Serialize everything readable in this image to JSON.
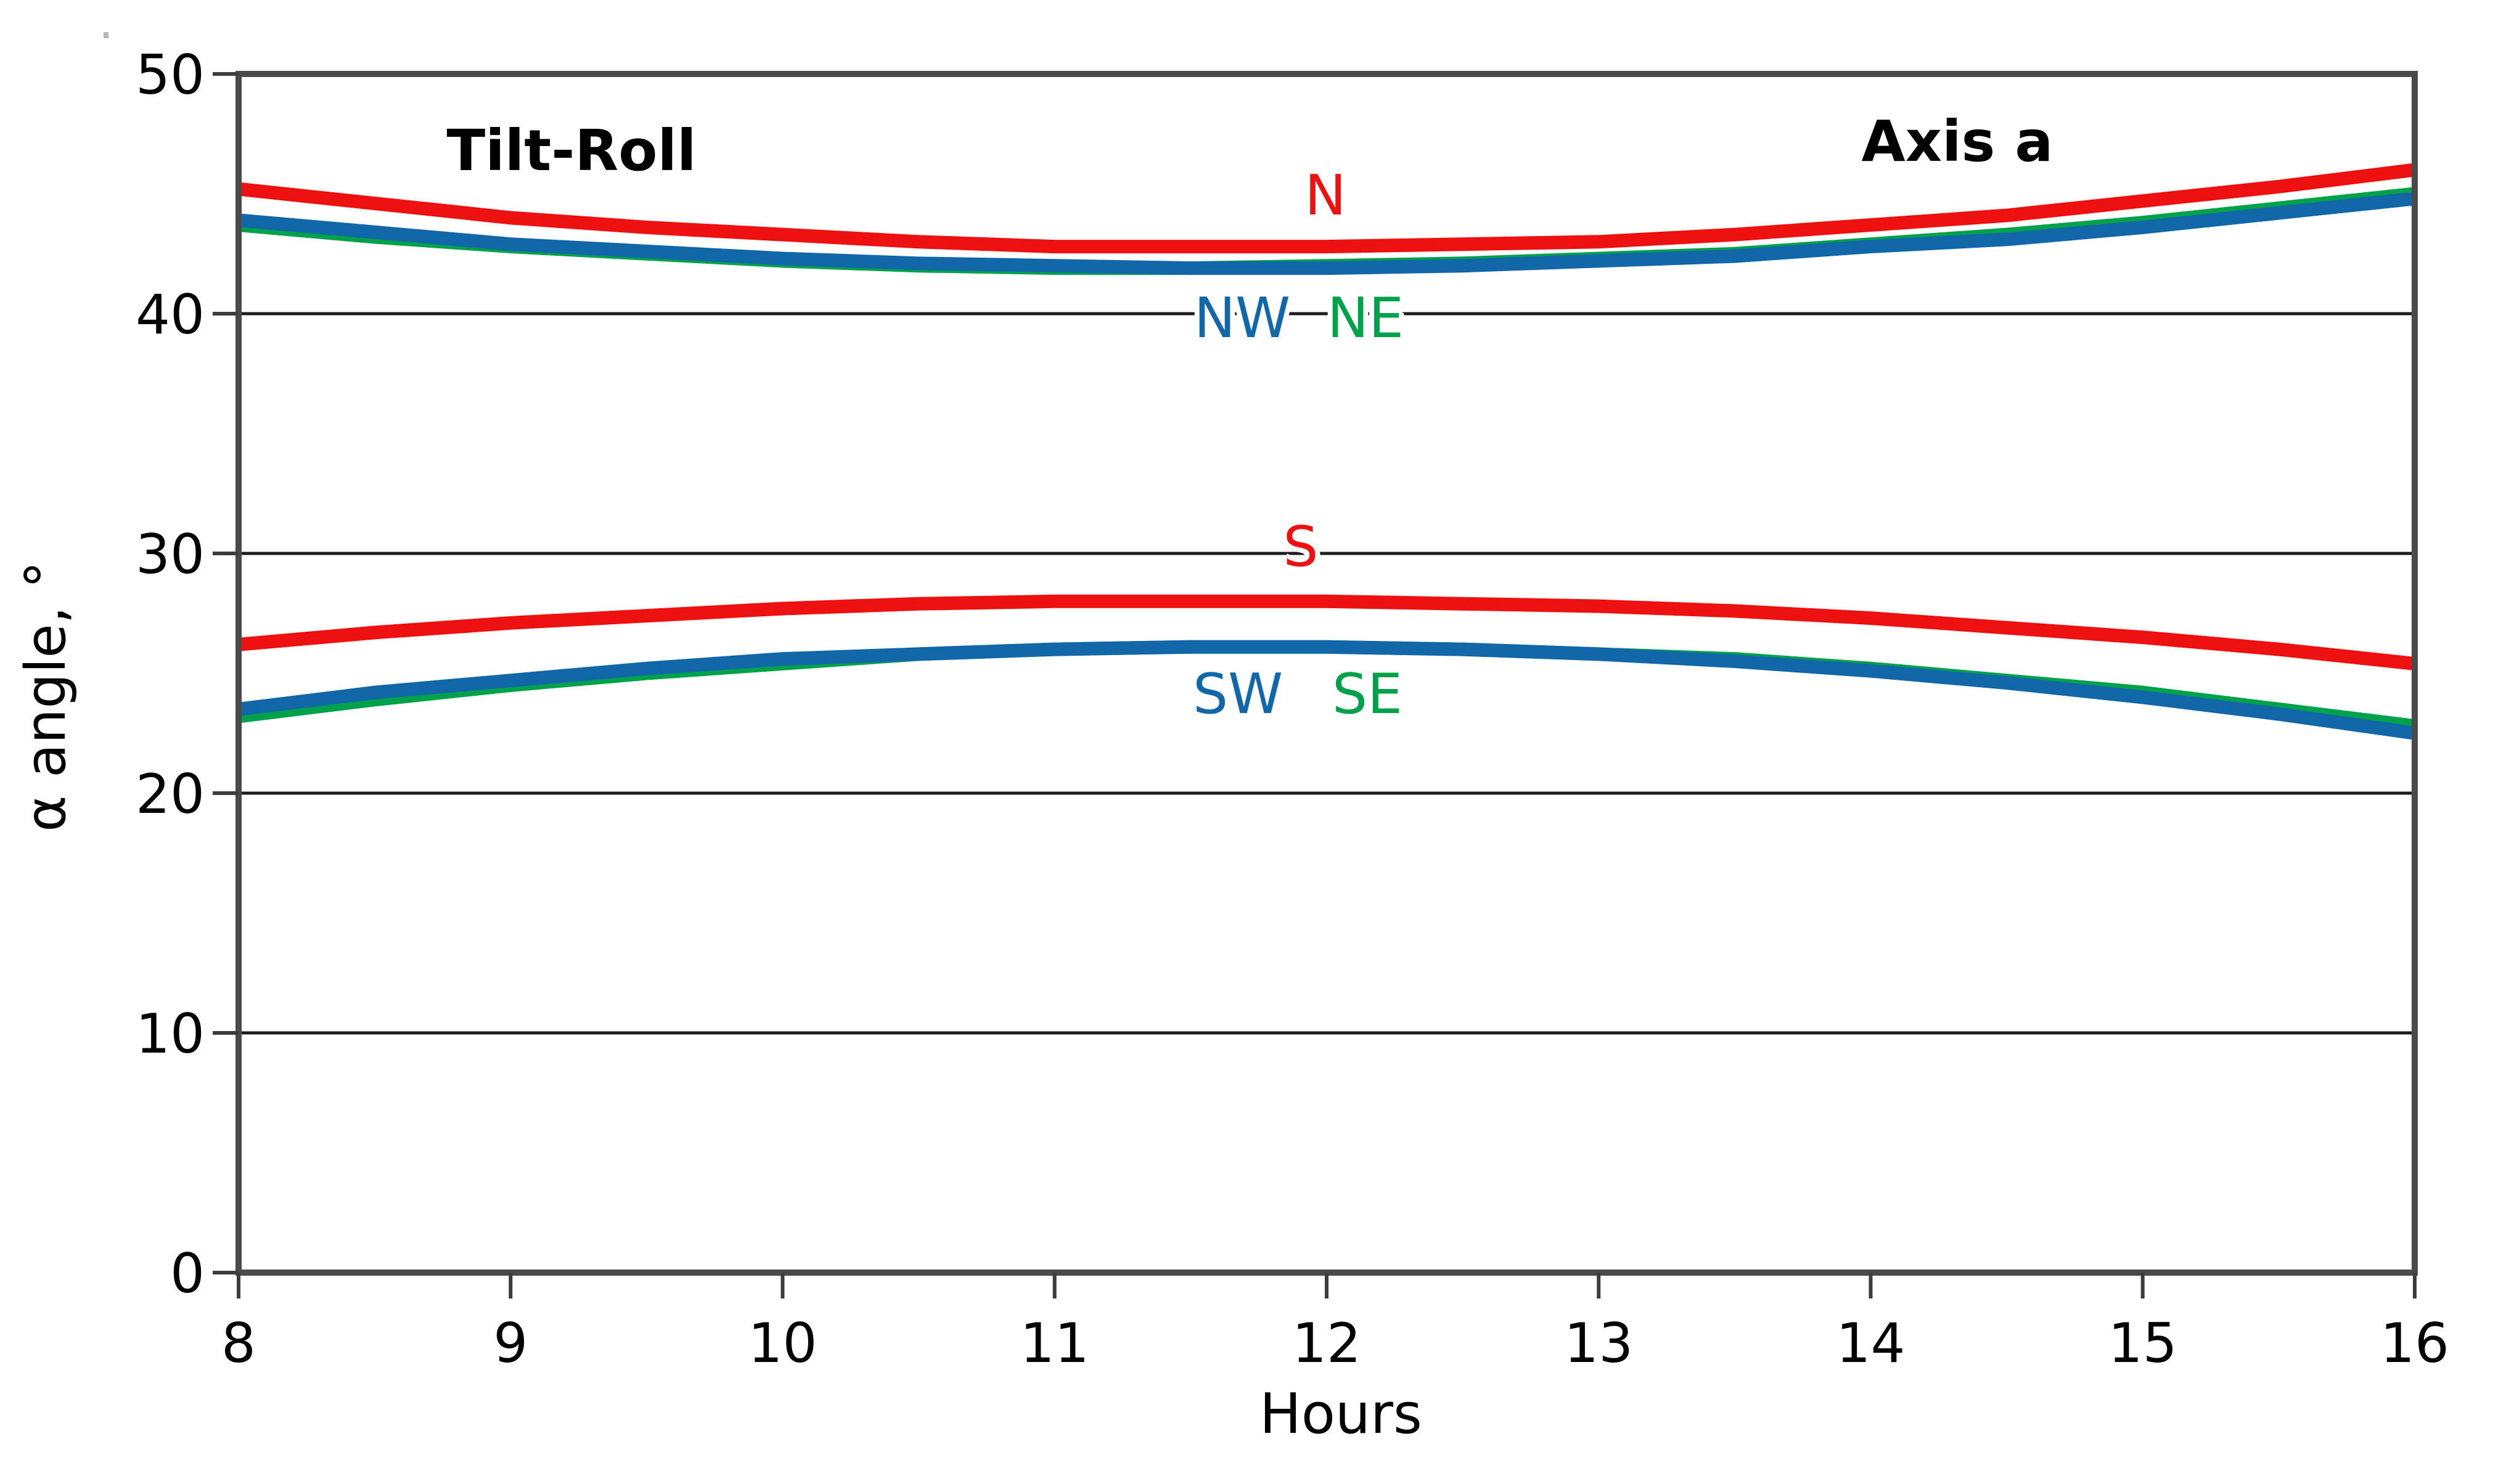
{
  "figure": {
    "title_left": "Tilt-Roll",
    "title_right": "Axis a",
    "xlabel": "Hours",
    "ylabel": "α angle, °"
  },
  "colors": {
    "red_curve": "#ee1111",
    "blue_curve": "#1167a8",
    "green_curve": "#00a14b",
    "frame": "#4a4a4a",
    "gridline": "#1c1c1c",
    "tick": "#3c3c3c",
    "text": "#000000"
  },
  "chart_data": {
    "type": "line",
    "title": "Tilt-Roll / Axis a",
    "xlabel": "Hours",
    "ylabel": "α angle, °",
    "xlim": [
      8,
      16
    ],
    "ylim": [
      0,
      50
    ],
    "x_ticks": [
      8,
      9,
      10,
      11,
      12,
      13,
      14,
      15,
      16
    ],
    "y_ticks": [
      0,
      10,
      20,
      30,
      40,
      50
    ],
    "grid": true,
    "legend": "inline curve labels",
    "x": [
      8,
      8.5,
      9,
      9.5,
      10,
      10.5,
      11,
      11.5,
      12,
      12.5,
      13,
      13.5,
      14,
      14.5,
      15,
      15.5,
      16
    ],
    "series": [
      {
        "name": "N",
        "label": "N",
        "color": "#ee1111",
        "z": 3,
        "values": [
          45.2,
          44.6,
          44.0,
          43.6,
          43.3,
          43.0,
          42.8,
          42.8,
          42.8,
          42.9,
          43.0,
          43.3,
          43.7,
          44.1,
          44.7,
          45.3,
          46.0
        ]
      },
      {
        "name": "NW",
        "label": "NW",
        "color": "#1167a8",
        "z": 2,
        "values": [
          43.9,
          43.4,
          42.9,
          42.6,
          42.3,
          42.1,
          42.0,
          41.9,
          41.9,
          42.0,
          42.2,
          42.4,
          42.8,
          43.1,
          43.6,
          44.2,
          44.8
        ]
      },
      {
        "name": "NE",
        "label": "NE",
        "color": "#00a14b",
        "z": 1,
        "values": [
          43.7,
          43.2,
          42.8,
          42.5,
          42.2,
          42.0,
          41.9,
          41.9,
          42.0,
          42.1,
          42.3,
          42.5,
          42.9,
          43.3,
          43.8,
          44.4,
          45.0
        ]
      },
      {
        "name": "S",
        "label": "S",
        "color": "#ee1111",
        "z": 3,
        "values": [
          26.2,
          26.7,
          27.1,
          27.4,
          27.7,
          27.9,
          28.0,
          28.0,
          28.0,
          27.9,
          27.8,
          27.6,
          27.3,
          26.9,
          26.5,
          26.0,
          25.4
        ]
      },
      {
        "name": "SW",
        "label": "SW",
        "color": "#1167a8",
        "z": 2,
        "values": [
          23.5,
          24.2,
          24.7,
          25.2,
          25.6,
          25.8,
          26.0,
          26.1,
          26.1,
          26.0,
          25.8,
          25.5,
          25.1,
          24.6,
          24.0,
          23.3,
          22.5
        ]
      },
      {
        "name": "SE",
        "label": "SE",
        "color": "#00a14b",
        "z": 1,
        "values": [
          23.2,
          23.9,
          24.5,
          25.0,
          25.4,
          25.8,
          26.0,
          26.1,
          26.1,
          26.0,
          25.8,
          25.6,
          25.2,
          24.7,
          24.2,
          23.5,
          22.8
        ]
      }
    ]
  }
}
